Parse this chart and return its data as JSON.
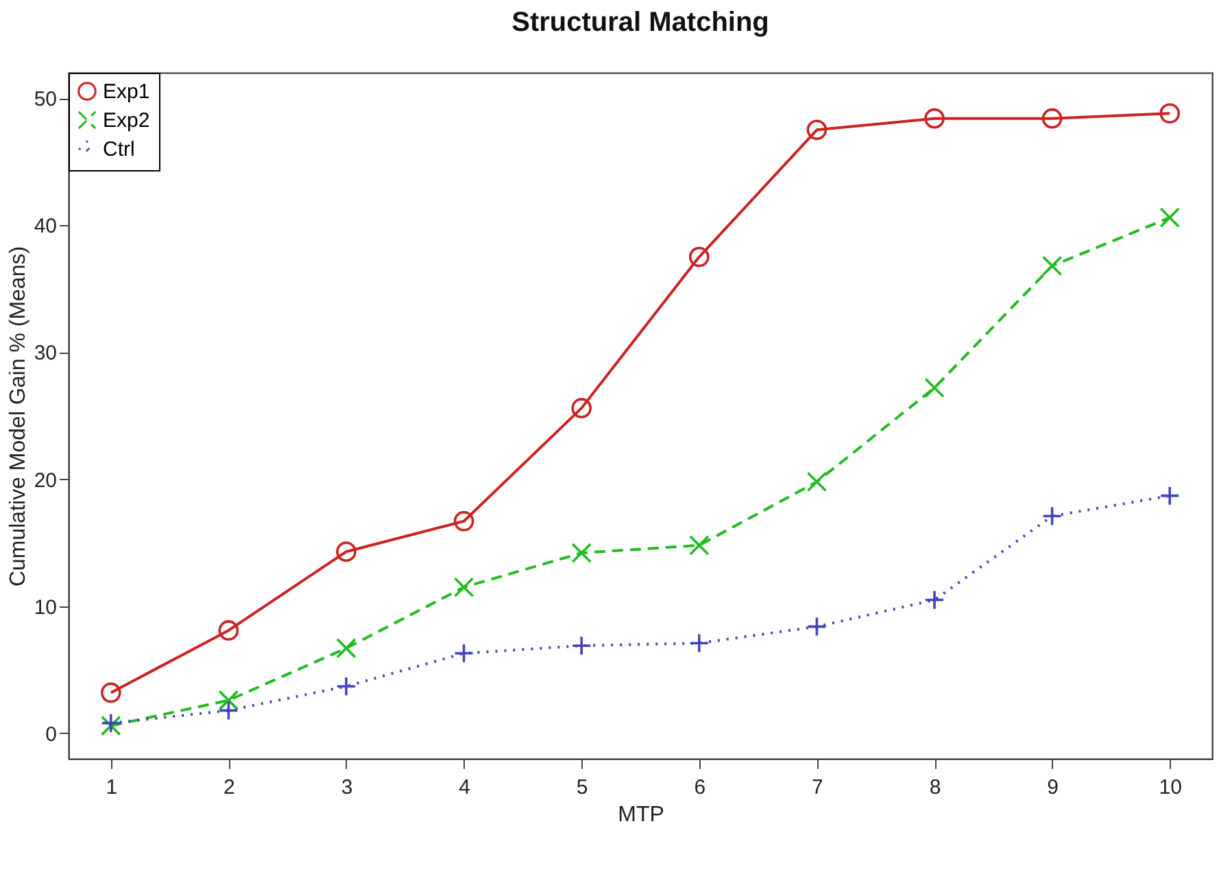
{
  "chart_data": {
    "type": "line",
    "title": "Structural Matching",
    "xlabel": "MTP",
    "ylabel": "Cumulative Model Gain % (Means)",
    "x": [
      1,
      2,
      3,
      4,
      5,
      6,
      7,
      8,
      9,
      10
    ],
    "series": [
      {
        "name": "Exp1",
        "color": "#cc2222",
        "marker": "circle",
        "line_style": "solid",
        "values": [
          3.2,
          8.1,
          14.3,
          16.7,
          25.6,
          37.5,
          47.5,
          48.4,
          48.4,
          48.8
        ]
      },
      {
        "name": "Exp2",
        "color": "#22bb22",
        "marker": "x",
        "line_style": "dashed",
        "values": [
          0.6,
          2.6,
          6.7,
          11.5,
          14.2,
          14.8,
          19.8,
          27.2,
          36.8,
          40.6
        ]
      },
      {
        "name": "Ctrl",
        "color": "#4444bb",
        "marker": "cross",
        "line_style": "dotted",
        "values": [
          0.8,
          1.8,
          3.7,
          6.3,
          6.9,
          7.1,
          8.4,
          10.5,
          17.1,
          18.7
        ]
      }
    ],
    "xlim": [
      0.64,
      10.36
    ],
    "xticks": [
      1,
      2,
      3,
      4,
      5,
      6,
      7,
      8,
      9,
      10
    ],
    "ylim": [
      -2,
      52
    ],
    "yticks": [
      0,
      10,
      20,
      30,
      40,
      50
    ],
    "grid": false,
    "legend": "top left"
  }
}
